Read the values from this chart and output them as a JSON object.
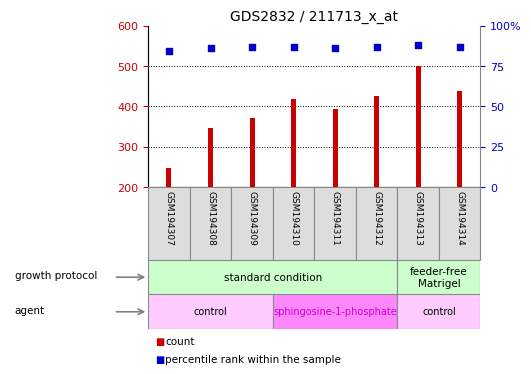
{
  "title": "GDS2832 / 211713_x_at",
  "samples": [
    "GSM194307",
    "GSM194308",
    "GSM194309",
    "GSM194310",
    "GSM194311",
    "GSM194312",
    "GSM194313",
    "GSM194314"
  ],
  "counts": [
    247,
    347,
    372,
    418,
    393,
    425,
    500,
    437
  ],
  "percentile_ranks": [
    84,
    86,
    87,
    87,
    86,
    87,
    88,
    87
  ],
  "ylim_left": [
    200,
    600
  ],
  "ylim_right": [
    0,
    100
  ],
  "yticks_left": [
    200,
    300,
    400,
    500,
    600
  ],
  "yticks_right": [
    0,
    25,
    50,
    75,
    100
  ],
  "bar_color": "#cc0000",
  "dot_color": "#0000cc",
  "bar_bottom": 200,
  "left_label_color": "#cc0000",
  "right_label_color": "#0000cc",
  "grid_color": "#000000",
  "gp_groups": [
    {
      "label": "standard condition",
      "start": 0,
      "end": 6,
      "color": "#ccffcc"
    },
    {
      "label": "feeder-free\nMatrigel",
      "start": 6,
      "end": 8,
      "color": "#ccffcc"
    }
  ],
  "ag_groups": [
    {
      "label": "control",
      "start": 0,
      "end": 3,
      "color": "#ffccff",
      "text_color": "#000000"
    },
    {
      "label": "sphingosine-1-phosphate",
      "start": 3,
      "end": 6,
      "color": "#ff88ff",
      "text_color": "#cc00cc"
    },
    {
      "label": "control",
      "start": 6,
      "end": 8,
      "color": "#ffccff",
      "text_color": "#000000"
    }
  ],
  "legend_count_color": "#cc0000",
  "legend_pct_color": "#0000cc"
}
